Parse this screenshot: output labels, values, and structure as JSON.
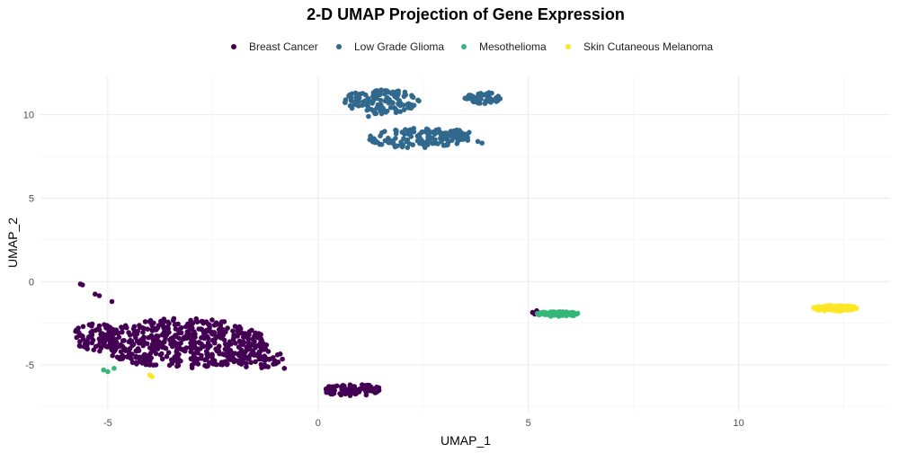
{
  "chart_data": {
    "type": "scatter",
    "title": "2-D UMAP Projection of Gene Expression",
    "xlabel": "UMAP_1",
    "ylabel": "UMAP_2",
    "xlim": [
      -6.6,
      13.6
    ],
    "ylim": [
      -7.8,
      12.3
    ],
    "x_ticks": [
      -5,
      0,
      5,
      10
    ],
    "y_ticks": [
      -5,
      0,
      5,
      10
    ],
    "grid": true,
    "legend_position": "top",
    "series": [
      {
        "name": "Breast Cancer",
        "color": "#440154",
        "clusters": [
          {
            "cx": -3.2,
            "cy": -3.7,
            "rx": 2.0,
            "ry": 1.5,
            "n": 520
          },
          {
            "cx": -5.3,
            "cy": -3.3,
            "rx": 0.5,
            "ry": 0.9,
            "n": 70
          },
          {
            "cx": -1.4,
            "cy": -4.6,
            "rx": 0.6,
            "ry": 0.6,
            "n": 45
          },
          {
            "cx": 0.8,
            "cy": -6.5,
            "rx": 0.7,
            "ry": 0.35,
            "n": 95
          }
        ],
        "points": [
          [
            -5.6,
            -0.2
          ],
          [
            -5.65,
            -0.15
          ],
          [
            -5.3,
            -0.75
          ],
          [
            -5.2,
            -0.85
          ],
          [
            -4.9,
            -1.2
          ],
          [
            5.1,
            -1.85
          ],
          [
            5.2,
            -1.75
          ],
          [
            5.15,
            -1.95
          ],
          [
            5.25,
            -1.9
          ],
          [
            -0.8,
            -5.2
          ]
        ]
      },
      {
        "name": "Low Grade Glioma",
        "color": "#31688e",
        "clusters": [
          {
            "cx": 1.5,
            "cy": 10.8,
            "rx": 0.9,
            "ry": 0.75,
            "n": 130
          },
          {
            "cx": 2.4,
            "cy": 8.6,
            "rx": 1.2,
            "ry": 0.6,
            "n": 130
          },
          {
            "cx": 3.9,
            "cy": 11.0,
            "rx": 0.45,
            "ry": 0.35,
            "n": 45
          },
          {
            "cx": 3.2,
            "cy": 8.8,
            "rx": 0.5,
            "ry": 0.3,
            "n": 25
          }
        ],
        "points": [
          [
            3.8,
            8.4
          ],
          [
            3.9,
            8.3
          ],
          [
            0.9,
            10.6
          ],
          [
            1.2,
            9.9
          ]
        ]
      },
      {
        "name": "Mesothelioma",
        "color": "#35b779",
        "clusters": [
          {
            "cx": 5.7,
            "cy": -1.95,
            "rx": 0.5,
            "ry": 0.15,
            "n": 90
          }
        ],
        "points": [
          [
            -5.1,
            -5.3
          ],
          [
            -5.0,
            -5.4
          ],
          [
            -4.85,
            -5.2
          ]
        ]
      },
      {
        "name": "Skin Cutaneous Melanoma",
        "color": "#fde725",
        "clusters": [
          {
            "cx": 12.3,
            "cy": -1.6,
            "rx": 0.55,
            "ry": 0.18,
            "n": 110
          }
        ],
        "points": [
          [
            -4.0,
            -5.6
          ],
          [
            -3.95,
            -5.7
          ]
        ]
      }
    ]
  }
}
